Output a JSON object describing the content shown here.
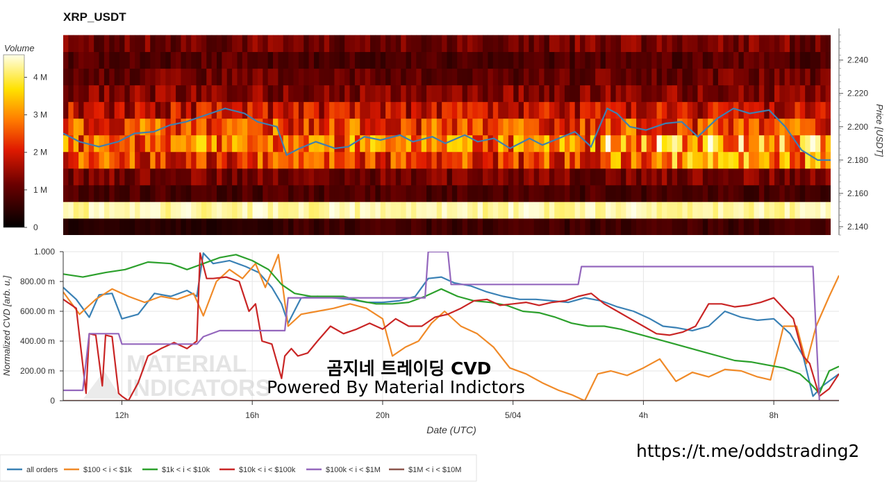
{
  "title": "XRP_USDT",
  "colorbar": {
    "label": "Volume",
    "ticks": [
      {
        "label": "0",
        "value": 0
      },
      {
        "label": "1 M",
        "value": 1000000
      },
      {
        "label": "2 M",
        "value": 2000000
      },
      {
        "label": "3 M",
        "value": 3000000
      },
      {
        "label": "4 M",
        "value": 4000000
      }
    ],
    "max": 4600000
  },
  "heatmap": {
    "price_axis_label": "Price [USDT]",
    "price_ticks": [
      "2.140",
      "2.160",
      "2.180",
      "2.200",
      "2.220",
      "2.240"
    ],
    "price_range": [
      2.135,
      2.259
    ],
    "price_line_color": "#3f7fb0"
  },
  "cvd": {
    "ylabel": "Normalized CVD [arb. u.]",
    "ytick_labels": [
      "0",
      "200.00 m",
      "400.00 m",
      "600.00 m",
      "800.00 m",
      "1.000"
    ],
    "xlabel": "Date (UTC)",
    "xtick_labels": [
      "12h",
      "16h",
      "20h",
      "5/04",
      "4h",
      "8h"
    ]
  },
  "overlay": {
    "title": "곰지네 트레이딩 CVD",
    "subtitle": "Powered By Material Indictors",
    "url": "https://t.me/oddstrading2"
  },
  "watermark": {
    "line1": "MATERIAL",
    "line2": "INDICATORS"
  },
  "chart_data": [
    {
      "type": "heatmap",
      "title": "XRP_USDT",
      "x_range_hours": [
        10.2,
        33.9
      ],
      "y_bins_price": [
        2.14,
        2.15,
        2.16,
        2.17,
        2.18,
        2.19,
        2.2,
        2.21,
        2.22,
        2.23,
        2.24,
        2.25
      ],
      "bin_volume_profile_M": [
        0.7,
        4.3,
        0.8,
        1.2,
        2.3,
        2.7,
        2.4,
        1.8,
        1.3,
        1.1,
        0.9,
        1.2
      ],
      "price_line": {
        "x": [
          10.2,
          10.7,
          11.3,
          11.9,
          12.4,
          13.0,
          13.5,
          14.0,
          14.6,
          15.2,
          15.8,
          16.2,
          16.8,
          17.1,
          17.5,
          18.0,
          18.6,
          19.0,
          19.5,
          20.0,
          20.6,
          21.0,
          21.6,
          22.0,
          22.6,
          23.0,
          23.5,
          24.0,
          24.6,
          25.0,
          25.5,
          26.0,
          26.5,
          27.0,
          27.3,
          27.7,
          28.2,
          28.8,
          29.3,
          29.8,
          30.4,
          30.9,
          31.4,
          32.0,
          32.5,
          33.0,
          33.5,
          33.9
        ],
        "y": [
          2.196,
          2.191,
          2.188,
          2.191,
          2.196,
          2.197,
          2.201,
          2.203,
          2.207,
          2.211,
          2.208,
          2.203,
          2.2,
          2.183,
          2.187,
          2.191,
          2.187,
          2.188,
          2.194,
          2.192,
          2.195,
          2.191,
          2.194,
          2.19,
          2.195,
          2.191,
          2.193,
          2.187,
          2.193,
          2.189,
          2.193,
          2.197,
          2.188,
          2.211,
          2.208,
          2.2,
          2.198,
          2.202,
          2.203,
          2.194,
          2.205,
          2.211,
          2.208,
          2.21,
          2.2,
          2.186,
          2.18,
          2.18
        ]
      }
    },
    {
      "type": "line",
      "xlabel": "Date (UTC)",
      "ylabel": "Normalized CVD [arb. u.]",
      "ylim": [
        0,
        1
      ],
      "xlim_hours": [
        10.2,
        34.0
      ],
      "x_ticks": [
        {
          "label": "12h",
          "value": 12
        },
        {
          "label": "16h",
          "value": 16
        },
        {
          "label": "20h",
          "value": 20
        },
        {
          "label": "5/04",
          "value": 24
        },
        {
          "label": "4h",
          "value": 28
        },
        {
          "label": "8h",
          "value": 32
        }
      ],
      "legend_position": "bottom-left",
      "series": [
        {
          "name": "all orders",
          "color": "#3a81b5",
          "x": [
            10.2,
            10.6,
            11.0,
            11.3,
            11.7,
            12.0,
            12.5,
            13.0,
            13.5,
            14.0,
            14.3,
            14.5,
            14.8,
            15.3,
            15.8,
            16.2,
            16.6,
            16.9,
            17.1,
            17.5,
            18.0,
            18.5,
            19.0,
            19.5,
            20.0,
            20.5,
            21.0,
            21.4,
            21.8,
            22.2,
            22.7,
            23.2,
            23.7,
            24.2,
            24.7,
            25.2,
            25.7,
            26.2,
            26.7,
            27.2,
            27.7,
            28.2,
            28.6,
            29.0,
            29.5,
            30.0,
            30.5,
            31.0,
            31.5,
            32.0,
            32.5,
            32.9,
            33.2,
            33.5,
            34.0
          ],
          "y": [
            0.76,
            0.68,
            0.56,
            0.71,
            0.72,
            0.55,
            0.58,
            0.72,
            0.7,
            0.74,
            0.7,
            0.99,
            0.92,
            0.94,
            0.9,
            0.86,
            0.76,
            0.65,
            0.52,
            0.69,
            0.7,
            0.69,
            0.68,
            0.66,
            0.66,
            0.67,
            0.7,
            0.82,
            0.83,
            0.79,
            0.77,
            0.73,
            0.7,
            0.68,
            0.68,
            0.67,
            0.66,
            0.69,
            0.67,
            0.63,
            0.6,
            0.55,
            0.5,
            0.49,
            0.47,
            0.5,
            0.6,
            0.56,
            0.54,
            0.55,
            0.45,
            0.3,
            0.03,
            0.1,
            0.18
          ]
        },
        {
          "name": "$100 < i < $1k",
          "color": "#f08a28",
          "x": [
            10.2,
            10.7,
            11.2,
            11.7,
            12.2,
            12.7,
            13.2,
            13.7,
            14.2,
            14.5,
            14.9,
            15.3,
            15.7,
            16.1,
            16.4,
            16.8,
            17.1,
            17.5,
            18.0,
            18.5,
            19.0,
            19.5,
            20.0,
            20.3,
            20.7,
            21.1,
            21.5,
            21.9,
            22.4,
            22.9,
            23.4,
            23.9,
            24.4,
            24.9,
            25.4,
            25.8,
            26.2,
            26.6,
            27.0,
            27.5,
            28.0,
            28.5,
            29.0,
            29.5,
            30.0,
            30.5,
            31.0,
            31.5,
            31.9,
            32.3,
            32.7,
            33.0,
            33.3,
            33.7,
            34.0
          ],
          "y": [
            0.73,
            0.58,
            0.68,
            0.75,
            0.7,
            0.66,
            0.7,
            0.68,
            0.72,
            0.57,
            0.8,
            0.88,
            0.82,
            0.92,
            0.76,
            0.98,
            0.5,
            0.58,
            0.6,
            0.62,
            0.65,
            0.62,
            0.55,
            0.3,
            0.36,
            0.4,
            0.52,
            0.6,
            0.5,
            0.45,
            0.36,
            0.22,
            0.18,
            0.12,
            0.07,
            0.04,
            0.0,
            0.18,
            0.2,
            0.17,
            0.22,
            0.28,
            0.13,
            0.19,
            0.16,
            0.21,
            0.2,
            0.16,
            0.14,
            0.5,
            0.5,
            0.25,
            0.5,
            0.7,
            0.84
          ]
        },
        {
          "name": "$1k < i < $10k",
          "color": "#2ca02c",
          "x": [
            10.2,
            10.8,
            11.5,
            12.1,
            12.8,
            13.5,
            14.0,
            14.5,
            15.0,
            15.5,
            16.0,
            16.5,
            16.9,
            17.3,
            17.8,
            18.3,
            18.8,
            19.3,
            19.8,
            20.3,
            20.8,
            21.3,
            21.8,
            22.3,
            22.8,
            23.3,
            23.8,
            24.3,
            24.8,
            25.3,
            25.8,
            26.3,
            26.8,
            27.3,
            27.8,
            28.3,
            28.8,
            29.3,
            29.8,
            30.3,
            30.8,
            31.3,
            31.8,
            32.3,
            32.8,
            33.1,
            33.4,
            33.7,
            34.0
          ],
          "y": [
            0.85,
            0.83,
            0.86,
            0.88,
            0.93,
            0.92,
            0.88,
            0.92,
            0.96,
            0.98,
            0.94,
            0.88,
            0.78,
            0.72,
            0.7,
            0.7,
            0.7,
            0.67,
            0.65,
            0.65,
            0.66,
            0.7,
            0.75,
            0.7,
            0.67,
            0.66,
            0.64,
            0.6,
            0.59,
            0.56,
            0.52,
            0.5,
            0.5,
            0.48,
            0.45,
            0.42,
            0.39,
            0.36,
            0.33,
            0.3,
            0.27,
            0.26,
            0.24,
            0.22,
            0.18,
            0.12,
            0.05,
            0.2,
            0.23
          ]
        },
        {
          "name": "$10k < i < $100k",
          "color": "#c92525",
          "x": [
            10.2,
            10.6,
            10.9,
            11.0,
            11.2,
            11.4,
            11.5,
            11.7,
            11.9,
            12.0,
            12.2,
            12.5,
            12.8,
            13.2,
            13.6,
            14.0,
            14.3,
            14.4,
            14.6,
            14.8,
            15.2,
            15.6,
            15.9,
            16.1,
            16.3,
            16.6,
            16.9,
            17.0,
            17.2,
            17.4,
            17.7,
            18.0,
            18.4,
            18.8,
            19.2,
            19.6,
            20.0,
            20.4,
            20.8,
            21.2,
            21.6,
            22.0,
            22.4,
            22.8,
            23.2,
            23.6,
            24.0,
            24.4,
            24.8,
            25.2,
            25.6,
            26.0,
            26.4,
            26.8,
            27.2,
            27.6,
            28.0,
            28.4,
            28.8,
            29.2,
            29.6,
            30.0,
            30.4,
            30.8,
            31.2,
            31.6,
            32.0,
            32.3,
            32.6,
            32.9,
            33.1,
            33.4,
            33.7,
            34.0
          ],
          "y": [
            0.68,
            0.62,
            0.05,
            0.45,
            0.44,
            0.1,
            0.44,
            0.43,
            0.05,
            0.03,
            0.0,
            0.12,
            0.3,
            0.35,
            0.39,
            0.35,
            0.4,
            0.99,
            0.82,
            0.82,
            0.83,
            0.8,
            0.6,
            0.65,
            0.4,
            0.38,
            0.15,
            0.3,
            0.35,
            0.3,
            0.32,
            0.4,
            0.5,
            0.45,
            0.48,
            0.52,
            0.48,
            0.55,
            0.5,
            0.5,
            0.56,
            0.58,
            0.62,
            0.67,
            0.68,
            0.64,
            0.65,
            0.66,
            0.64,
            0.66,
            0.67,
            0.7,
            0.72,
            0.65,
            0.6,
            0.55,
            0.5,
            0.45,
            0.44,
            0.46,
            0.5,
            0.65,
            0.65,
            0.63,
            0.64,
            0.66,
            0.69,
            0.62,
            0.55,
            0.3,
            0.25,
            0.03,
            0.08,
            0.18
          ]
        },
        {
          "name": "$100k < i < $1M",
          "color": "#9467bd",
          "x": [
            10.2,
            10.8,
            11.0,
            11.9,
            12.0,
            14.3,
            14.5,
            15.0,
            16.0,
            17.0,
            17.1,
            18.0,
            20.0,
            21.3,
            21.4,
            22.0,
            22.1,
            23.5,
            25.0,
            26.0,
            26.1,
            28.0,
            30.0,
            32.0,
            33.2,
            33.4,
            33.5,
            34.0
          ],
          "y": [
            0.07,
            0.07,
            0.45,
            0.45,
            0.38,
            0.38,
            0.43,
            0.47,
            0.47,
            0.47,
            0.69,
            0.69,
            0.69,
            0.69,
            1.0,
            1.0,
            0.78,
            0.78,
            0.78,
            0.78,
            0.9,
            0.9,
            0.9,
            0.9,
            0.9,
            0.0,
            0.0,
            0.0
          ]
        },
        {
          "name": "$1M < i < $10M",
          "color": "#8c564b",
          "x": [
            10.2,
            34.0
          ],
          "y": [
            0.0,
            0.0
          ]
        }
      ]
    }
  ]
}
